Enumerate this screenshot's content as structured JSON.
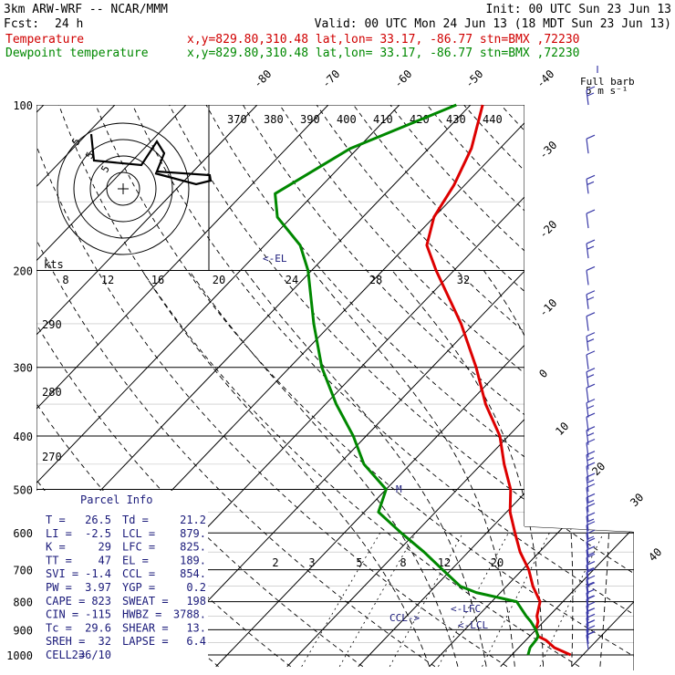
{
  "header": {
    "model": "3km ARW-WRF -- NCAR/MMM",
    "init": "Init: 00 UTC Sun 23 Jun 13",
    "fcst_label": "Fcst:",
    "fcst_value": "24 h",
    "valid": "Valid: 00 UTC Mon 24 Jun 13 (18 MDT Sun 23 Jun 13)",
    "temp_label": "Temperature",
    "temp_info": "x,y=829.80,310.48   lat,lon= 33.17, -86.77   stn=BMX ,72230",
    "dew_label": "Dewpoint temperature",
    "dew_info": "x,y=829.80,310.48   lat,lon= 33.17, -86.77   stn=BMX ,72230"
  },
  "colors": {
    "temperature": "#dd0000",
    "dewpoint": "#008800",
    "wind": "#3a3aa8"
  },
  "wind_key": {
    "line1": "Full barb",
    "line2": "5 m s⁻¹"
  },
  "hodograph": {
    "kts_label": "kts",
    "ring_labels": [
      "5",
      "5",
      "5"
    ]
  },
  "parcel_info": {
    "title": "Parcel Info",
    "rows": [
      [
        "T  =",
        "26.5",
        "Td =",
        "21.2"
      ],
      [
        "LI =",
        "-2.5",
        "LCL =",
        "879."
      ],
      [
        "K  =",
        "29",
        "LFC =",
        "825."
      ],
      [
        "TT =",
        "47",
        "EL  =",
        "189."
      ],
      [
        "SVI =",
        "-1.4",
        "CCL =",
        "854."
      ],
      [
        "PW =",
        "3.97",
        "YGP =",
        "0.2"
      ],
      [
        "CAPE =",
        "823",
        "SWEAT =",
        "198"
      ],
      [
        "CIN =",
        "-115",
        "HWBZ =",
        "3788."
      ],
      [
        "Tc =",
        "29.6",
        "SHEAR =",
        "13."
      ],
      [
        "SREH =",
        "32",
        "LAPSE =",
        "6.4"
      ],
      [
        "CELL =",
        "236/10",
        "",
        ""
      ]
    ]
  },
  "level_markers": {
    "el": "<-EL",
    "lfc": "<-LFC",
    "lcl": "<-LCL",
    "ccl": "CCL->",
    "m": "M"
  },
  "chart_data": {
    "type": "line",
    "title": "",
    "y_axis": {
      "label": "",
      "scale": "log",
      "ticks": [
        100,
        200,
        300,
        400,
        500,
        600,
        700,
        800,
        900,
        1000
      ]
    },
    "isotherm_labels": [
      -80,
      -70,
      -60,
      -50,
      -40,
      -30,
      -20,
      -10,
      0,
      10,
      20,
      30,
      40
    ],
    "theta_labels": [
      370,
      380,
      390,
      400,
      410,
      420,
      430,
      440
    ],
    "theta_left_labels": [
      290,
      280,
      270
    ],
    "mixing_ratio_labels": [
      2,
      3,
      5,
      8,
      12,
      20
    ],
    "hodo_speed_labels": [
      8,
      12,
      16,
      20,
      24,
      28,
      32
    ],
    "series": [
      {
        "name": "Temperature",
        "points": [
          [
            1000,
            28.3
          ],
          [
            970,
            25.0
          ],
          [
            940,
            22.8
          ],
          [
            925,
            21.2
          ],
          [
            900,
            20.0
          ],
          [
            870,
            19.2
          ],
          [
            850,
            18.3
          ],
          [
            800,
            16.8
          ],
          [
            750,
            13.7
          ],
          [
            700,
            10.9
          ],
          [
            650,
            7.3
          ],
          [
            600,
            4.0
          ],
          [
            550,
            0.5
          ],
          [
            500,
            -2.5
          ],
          [
            450,
            -6.8
          ],
          [
            400,
            -11.2
          ],
          [
            350,
            -17.5
          ],
          [
            300,
            -23.8
          ],
          [
            250,
            -31.8
          ],
          [
            200,
            -42.5
          ],
          [
            180,
            -47.2
          ],
          [
            160,
            -50.0
          ],
          [
            140,
            -51.5
          ],
          [
            120,
            -54.0
          ],
          [
            100,
            -58.3
          ]
        ]
      },
      {
        "name": "Dewpoint temperature",
        "points": [
          [
            1000,
            22.3
          ],
          [
            970,
            21.6
          ],
          [
            940,
            21.4
          ],
          [
            925,
            21.2
          ],
          [
            900,
            20.0
          ],
          [
            870,
            18.2
          ],
          [
            850,
            16.8
          ],
          [
            800,
            13.5
          ],
          [
            770,
            6.6
          ],
          [
            750,
            3.5
          ],
          [
            700,
            -1.2
          ],
          [
            650,
            -6.2
          ],
          [
            600,
            -12.0
          ],
          [
            550,
            -18.0
          ],
          [
            500,
            -20.0
          ],
          [
            450,
            -26.5
          ],
          [
            400,
            -31.8
          ],
          [
            350,
            -38.5
          ],
          [
            300,
            -45.5
          ],
          [
            250,
            -52.5
          ],
          [
            200,
            -60.5
          ],
          [
            180,
            -65.0
          ],
          [
            160,
            -72.0
          ],
          [
            145,
            -75.5
          ],
          [
            120,
            -71.0
          ],
          [
            100,
            -62.0
          ]
        ]
      }
    ]
  }
}
